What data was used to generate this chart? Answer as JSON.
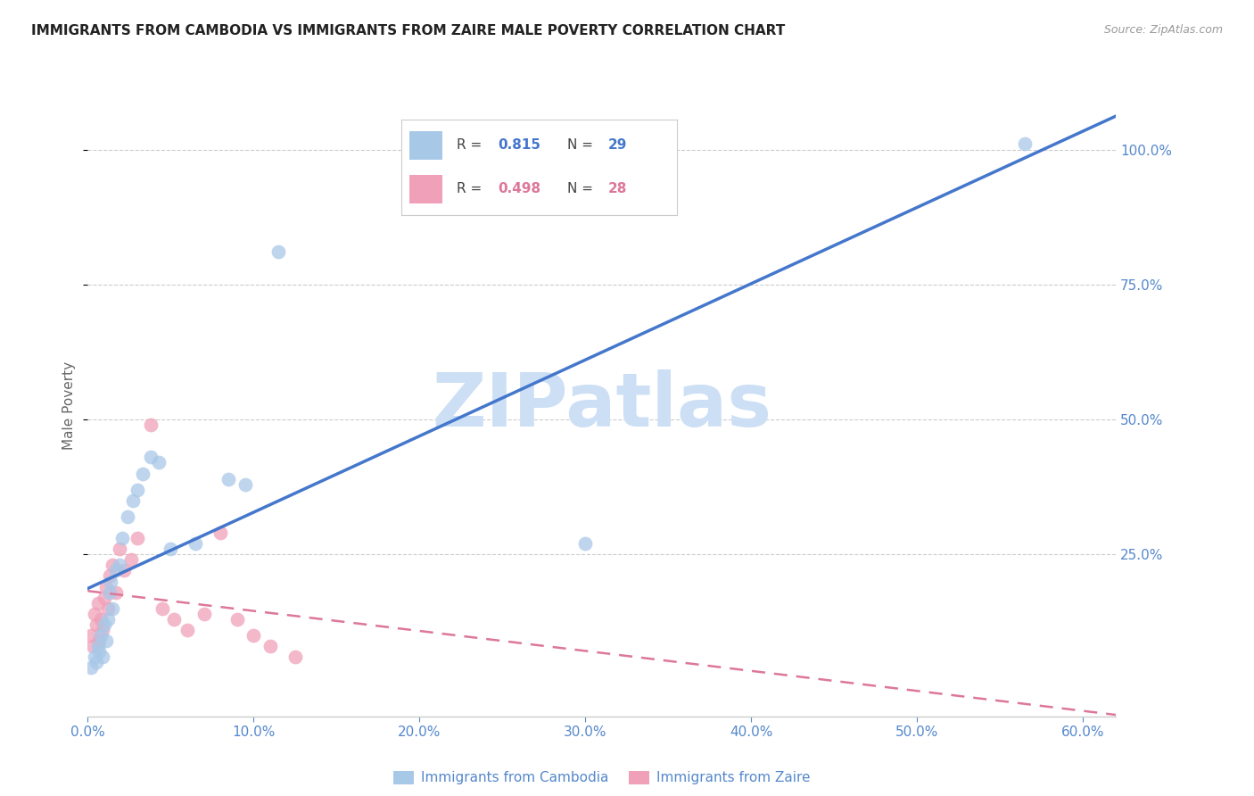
{
  "title": "IMMIGRANTS FROM CAMBODIA VS IMMIGRANTS FROM ZAIRE MALE POVERTY CORRELATION CHART",
  "source": "Source: ZipAtlas.com",
  "ylabel": "Male Poverty",
  "xlim": [
    0.0,
    0.62
  ],
  "ylim": [
    -0.05,
    1.1
  ],
  "xtick_labels": [
    "0.0%",
    "10.0%",
    "20.0%",
    "30.0%",
    "40.0%",
    "50.0%",
    "60.0%"
  ],
  "xtick_values": [
    0.0,
    0.1,
    0.2,
    0.3,
    0.4,
    0.5,
    0.6
  ],
  "ytick_labels": [
    "25.0%",
    "50.0%",
    "75.0%",
    "100.0%"
  ],
  "ytick_values": [
    0.25,
    0.5,
    0.75,
    1.0
  ],
  "r1_val": "0.815",
  "n1_val": "29",
  "r2_val": "0.498",
  "n2_val": "28",
  "watermark": "ZIPatlas",
  "watermark_color": "#ccdff5",
  "background_color": "#ffffff",
  "grid_color": "#cccccc",
  "blue_color": "#a8c8e8",
  "pink_color": "#f0a0b8",
  "blue_line_color": "#4477cc",
  "pink_line_color": "#dd7799",
  "axis_color": "#5588cc",
  "cambodia_x": [
    0.002,
    0.004,
    0.005,
    0.006,
    0.007,
    0.008,
    0.009,
    0.01,
    0.011,
    0.012,
    0.013,
    0.014,
    0.015,
    0.017,
    0.019,
    0.021,
    0.024,
    0.027,
    0.03,
    0.033,
    0.038,
    0.043,
    0.05,
    0.065,
    0.085,
    0.095,
    0.115,
    0.3,
    0.565
  ],
  "cambodia_y": [
    0.04,
    0.06,
    0.05,
    0.08,
    0.07,
    0.1,
    0.06,
    0.12,
    0.09,
    0.13,
    0.18,
    0.2,
    0.15,
    0.22,
    0.23,
    0.28,
    0.32,
    0.35,
    0.37,
    0.4,
    0.43,
    0.42,
    0.26,
    0.27,
    0.39,
    0.38,
    0.81,
    0.27,
    1.01
  ],
  "zaire_x": [
    0.002,
    0.003,
    0.004,
    0.005,
    0.006,
    0.007,
    0.008,
    0.009,
    0.01,
    0.011,
    0.012,
    0.013,
    0.015,
    0.017,
    0.019,
    0.022,
    0.026,
    0.03,
    0.038,
    0.045,
    0.052,
    0.06,
    0.07,
    0.08,
    0.09,
    0.1,
    0.11,
    0.125
  ],
  "zaire_y": [
    0.1,
    0.08,
    0.14,
    0.12,
    0.16,
    0.09,
    0.13,
    0.11,
    0.17,
    0.19,
    0.15,
    0.21,
    0.23,
    0.18,
    0.26,
    0.22,
    0.24,
    0.28,
    0.49,
    0.15,
    0.13,
    0.11,
    0.14,
    0.29,
    0.13,
    0.1,
    0.08,
    0.06
  ]
}
